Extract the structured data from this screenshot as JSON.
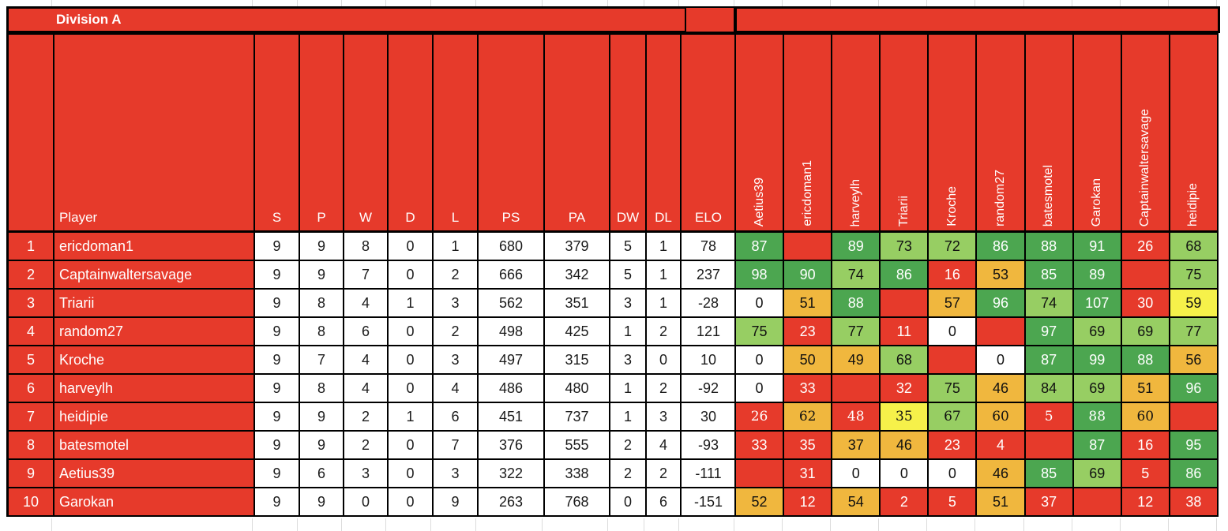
{
  "title": "Division A",
  "colors": {
    "red": "#E63A2B",
    "dark_green": "#4CA650",
    "light_green": "#97CE63",
    "amber": "#F0B73E",
    "yellow": "#F6F14A",
    "white_cell": "#FFFFFF"
  },
  "table": {
    "player_column_label": "Player",
    "stats_columns": [
      "S",
      "P",
      "W",
      "D",
      "L",
      "PS",
      "PA",
      "DW",
      "DL",
      "ELO"
    ],
    "matrix_columns": [
      "Aetius39",
      "ericdoman1",
      "harveylh",
      "Triarii",
      "Kroche",
      "random27",
      "batesmotel",
      "Garokan",
      "Captainwaltersavage",
      "heidipie"
    ]
  },
  "rows": [
    {
      "rank": "1",
      "player": "ericdoman1",
      "stats": [
        "9",
        "9",
        "8",
        "0",
        "1",
        "680",
        "379",
        "5",
        "1",
        "78"
      ],
      "matrix": [
        {
          "v": "87",
          "c": "dg"
        },
        {
          "v": "",
          "c": "self"
        },
        {
          "v": "89",
          "c": "dg"
        },
        {
          "v": "73",
          "c": "lg"
        },
        {
          "v": "72",
          "c": "lg"
        },
        {
          "v": "86",
          "c": "dg"
        },
        {
          "v": "88",
          "c": "dg"
        },
        {
          "v": "91",
          "c": "dg"
        },
        {
          "v": "26",
          "c": "rd"
        },
        {
          "v": "68",
          "c": "lg"
        }
      ]
    },
    {
      "rank": "2",
      "player": "Captainwaltersavage",
      "stats": [
        "9",
        "9",
        "7",
        "0",
        "2",
        "666",
        "342",
        "5",
        "1",
        "237"
      ],
      "matrix": [
        {
          "v": "98",
          "c": "dg"
        },
        {
          "v": "90",
          "c": "dg"
        },
        {
          "v": "74",
          "c": "lg"
        },
        {
          "v": "86",
          "c": "dg"
        },
        {
          "v": "16",
          "c": "rd"
        },
        {
          "v": "53",
          "c": "am"
        },
        {
          "v": "85",
          "c": "dg"
        },
        {
          "v": "89",
          "c": "dg"
        },
        {
          "v": "",
          "c": "self"
        },
        {
          "v": "75",
          "c": "lg"
        }
      ]
    },
    {
      "rank": "3",
      "player": "Triarii",
      "stats": [
        "9",
        "8",
        "4",
        "1",
        "3",
        "562",
        "351",
        "3",
        "1",
        "-28"
      ],
      "matrix": [
        {
          "v": "0",
          "c": "wh"
        },
        {
          "v": "51",
          "c": "am"
        },
        {
          "v": "88",
          "c": "dg"
        },
        {
          "v": "",
          "c": "self"
        },
        {
          "v": "57",
          "c": "am"
        },
        {
          "v": "96",
          "c": "dg"
        },
        {
          "v": "74",
          "c": "lg"
        },
        {
          "v": "107",
          "c": "dg"
        },
        {
          "v": "30",
          "c": "rd"
        },
        {
          "v": "59",
          "c": "yl"
        }
      ]
    },
    {
      "rank": "4",
      "player": "random27",
      "stats": [
        "9",
        "8",
        "6",
        "0",
        "2",
        "498",
        "425",
        "1",
        "2",
        "121"
      ],
      "matrix": [
        {
          "v": "75",
          "c": "lg"
        },
        {
          "v": "23",
          "c": "rd"
        },
        {
          "v": "77",
          "c": "lg"
        },
        {
          "v": "11",
          "c": "rd"
        },
        {
          "v": "0",
          "c": "wh"
        },
        {
          "v": "",
          "c": "self"
        },
        {
          "v": "97",
          "c": "dg"
        },
        {
          "v": "69",
          "c": "lg"
        },
        {
          "v": "69",
          "c": "lg"
        },
        {
          "v": "77",
          "c": "lg"
        }
      ]
    },
    {
      "rank": "5",
      "player": "Kroche",
      "stats": [
        "9",
        "7",
        "4",
        "0",
        "3",
        "497",
        "315",
        "3",
        "0",
        "10"
      ],
      "matrix": [
        {
          "v": "0",
          "c": "wh"
        },
        {
          "v": "50",
          "c": "am"
        },
        {
          "v": "49",
          "c": "am"
        },
        {
          "v": "68",
          "c": "lg"
        },
        {
          "v": "",
          "c": "self"
        },
        {
          "v": "0",
          "c": "wh"
        },
        {
          "v": "87",
          "c": "dg"
        },
        {
          "v": "99",
          "c": "dg"
        },
        {
          "v": "88",
          "c": "dg"
        },
        {
          "v": "56",
          "c": "am"
        }
      ]
    },
    {
      "rank": "6",
      "player": "harveylh",
      "stats": [
        "9",
        "8",
        "4",
        "0",
        "4",
        "486",
        "480",
        "1",
        "2",
        "-92"
      ],
      "matrix": [
        {
          "v": "0",
          "c": "wh"
        },
        {
          "v": "33",
          "c": "rd"
        },
        {
          "v": "",
          "c": "self"
        },
        {
          "v": "32",
          "c": "rd"
        },
        {
          "v": "75",
          "c": "lg"
        },
        {
          "v": "46",
          "c": "am"
        },
        {
          "v": "84",
          "c": "lg"
        },
        {
          "v": "69",
          "c": "lg"
        },
        {
          "v": "51",
          "c": "am"
        },
        {
          "v": "96",
          "c": "dg"
        }
      ]
    },
    {
      "rank": "7",
      "player": "heidipie",
      "stats": [
        "9",
        "9",
        "2",
        "1",
        "6",
        "451",
        "737",
        "1",
        "3",
        "30"
      ],
      "matrix_font": "serif",
      "matrix": [
        {
          "v": "26",
          "c": "rd"
        },
        {
          "v": "62",
          "c": "am"
        },
        {
          "v": "48",
          "c": "rd"
        },
        {
          "v": "35",
          "c": "yl"
        },
        {
          "v": "67",
          "c": "lg"
        },
        {
          "v": "60",
          "c": "am"
        },
        {
          "v": "5",
          "c": "rd"
        },
        {
          "v": "88",
          "c": "dg"
        },
        {
          "v": "60",
          "c": "am"
        },
        {
          "v": "",
          "c": "self"
        }
      ]
    },
    {
      "rank": "8",
      "player": "batesmotel",
      "stats": [
        "9",
        "9",
        "2",
        "0",
        "7",
        "376",
        "555",
        "2",
        "4",
        "-93"
      ],
      "matrix": [
        {
          "v": "33",
          "c": "rd"
        },
        {
          "v": "35",
          "c": "rd"
        },
        {
          "v": "37",
          "c": "am"
        },
        {
          "v": "46",
          "c": "am"
        },
        {
          "v": "23",
          "c": "rd"
        },
        {
          "v": "4",
          "c": "rd"
        },
        {
          "v": "",
          "c": "self"
        },
        {
          "v": "87",
          "c": "dg"
        },
        {
          "v": "16",
          "c": "rd"
        },
        {
          "v": "95",
          "c": "dg"
        }
      ]
    },
    {
      "rank": "9",
      "player": "Aetius39",
      "stats": [
        "9",
        "6",
        "3",
        "0",
        "3",
        "322",
        "338",
        "2",
        "2",
        "-111"
      ],
      "matrix": [
        {
          "v": "",
          "c": "self"
        },
        {
          "v": "31",
          "c": "rd"
        },
        {
          "v": "0",
          "c": "wh"
        },
        {
          "v": "0",
          "c": "wh"
        },
        {
          "v": "0",
          "c": "wh"
        },
        {
          "v": "46",
          "c": "am"
        },
        {
          "v": "85",
          "c": "dg"
        },
        {
          "v": "69",
          "c": "lg"
        },
        {
          "v": "5",
          "c": "rd"
        },
        {
          "v": "86",
          "c": "dg"
        }
      ]
    },
    {
      "rank": "10",
      "player": "Garokan",
      "stats": [
        "9",
        "9",
        "0",
        "0",
        "9",
        "263",
        "768",
        "0",
        "6",
        "-151"
      ],
      "matrix": [
        {
          "v": "52",
          "c": "am"
        },
        {
          "v": "12",
          "c": "rd"
        },
        {
          "v": "54",
          "c": "am"
        },
        {
          "v": "2",
          "c": "rd"
        },
        {
          "v": "5",
          "c": "rd"
        },
        {
          "v": "51",
          "c": "am"
        },
        {
          "v": "37",
          "c": "rd"
        },
        {
          "v": "",
          "c": "self"
        },
        {
          "v": "12",
          "c": "rd"
        },
        {
          "v": "38",
          "c": "rd"
        }
      ]
    }
  ]
}
